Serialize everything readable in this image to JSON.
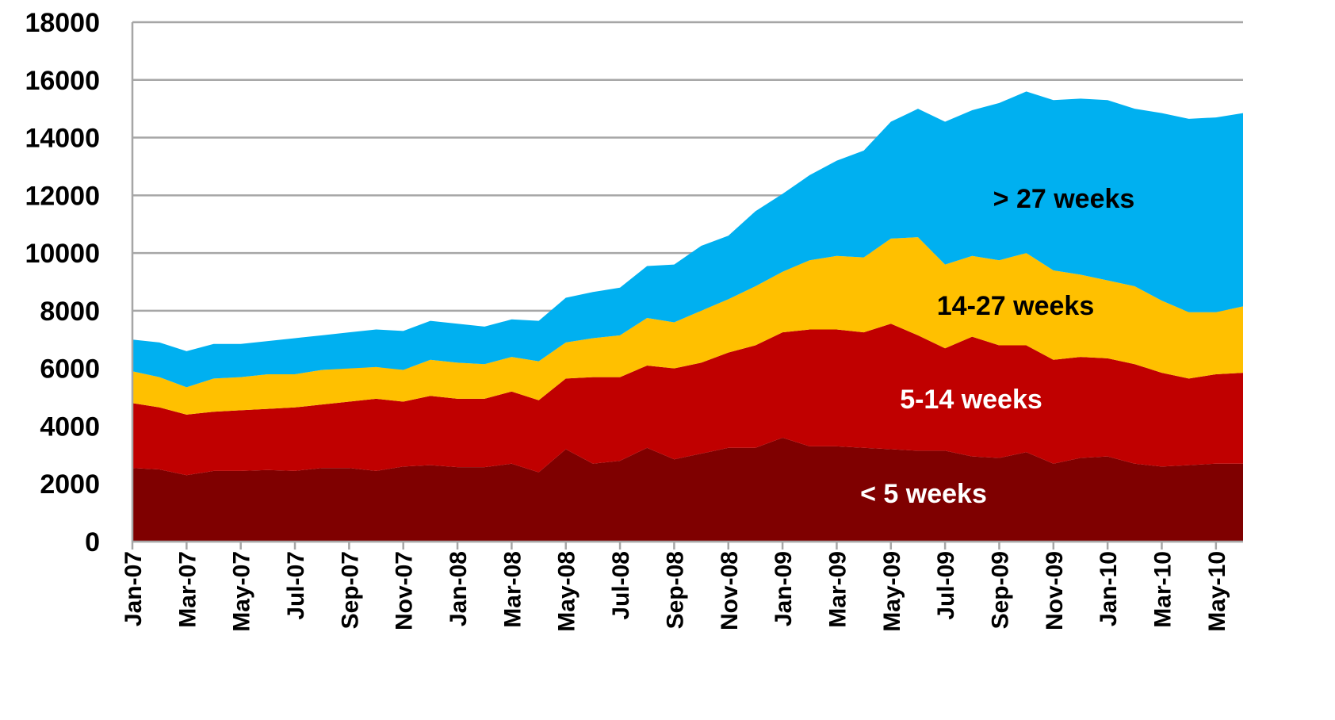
{
  "chart_data": {
    "type": "area",
    "stacked": true,
    "categories": [
      "Jan-07",
      null,
      "Mar-07",
      null,
      "May-07",
      null,
      "Jul-07",
      null,
      "Sep-07",
      null,
      "Nov-07",
      null,
      "Jan-08",
      null,
      "Mar-08",
      null,
      "May-08",
      null,
      "Jul-08",
      null,
      "Sep-08",
      null,
      "Nov-08",
      null,
      "Jan-09",
      null,
      "Mar-09",
      null,
      "May-09",
      null,
      "Jul-09",
      null,
      "Sep-09",
      null,
      "Nov-09",
      null,
      "Jan-10",
      null,
      "Mar-10",
      null,
      "May-10",
      null
    ],
    "series": [
      {
        "name": "< 5 weeks",
        "color": "#7f0000",
        "values": [
          2550,
          2500,
          2300,
          2450,
          2450,
          2480,
          2450,
          2550,
          2550,
          2450,
          2600,
          2650,
          2580,
          2580,
          2700,
          2400,
          3200,
          2700,
          2800,
          3250,
          2850,
          3050,
          3250,
          3250,
          3600,
          3300,
          3300,
          3250,
          3200,
          3150,
          3150,
          2950,
          2900,
          3100,
          2700,
          2900,
          2950,
          2700,
          2600,
          2650,
          2700,
          2700
        ]
      },
      {
        "name": "5-14 weeks",
        "color": "#c00000",
        "values": [
          2250,
          2150,
          2100,
          2050,
          2100,
          2120,
          2200,
          2200,
          2300,
          2500,
          2250,
          2400,
          2370,
          2370,
          2500,
          2500,
          2450,
          3000,
          2900,
          2850,
          3150,
          3150,
          3300,
          3550,
          3650,
          4050,
          4050,
          4000,
          4350,
          4000,
          3550,
          4150,
          3900,
          3700,
          3600,
          3500,
          3400,
          3450,
          3250,
          3000,
          3100,
          3150
        ]
      },
      {
        "name": "14-27 weeks",
        "color": "#ffc000",
        "values": [
          1100,
          1050,
          950,
          1150,
          1150,
          1200,
          1150,
          1200,
          1150,
          1100,
          1100,
          1250,
          1250,
          1200,
          1200,
          1350,
          1250,
          1350,
          1450,
          1650,
          1600,
          1800,
          1850,
          2050,
          2100,
          2400,
          2550,
          2600,
          2950,
          3400,
          2900,
          2800,
          2950,
          3200,
          3100,
          2850,
          2700,
          2700,
          2500,
          2300,
          2150,
          2300
        ]
      },
      {
        "name": "> 27 weeks",
        "color": "#00b0f0",
        "values": [
          1100,
          1200,
          1250,
          1200,
          1150,
          1150,
          1250,
          1200,
          1250,
          1300,
          1350,
          1350,
          1350,
          1300,
          1300,
          1400,
          1550,
          1600,
          1650,
          1800,
          2000,
          2250,
          2200,
          2600,
          2700,
          2950,
          3300,
          3700,
          4050,
          4450,
          4950,
          5050,
          5450,
          5600,
          5900,
          6100,
          6250,
          6150,
          6500,
          6700,
          6750,
          6700
        ]
      }
    ],
    "ylim": [
      0,
      18000
    ],
    "yticks": [
      0,
      2000,
      4000,
      6000,
      8000,
      10000,
      12000,
      14000,
      16000,
      18000
    ],
    "grid": true
  }
}
